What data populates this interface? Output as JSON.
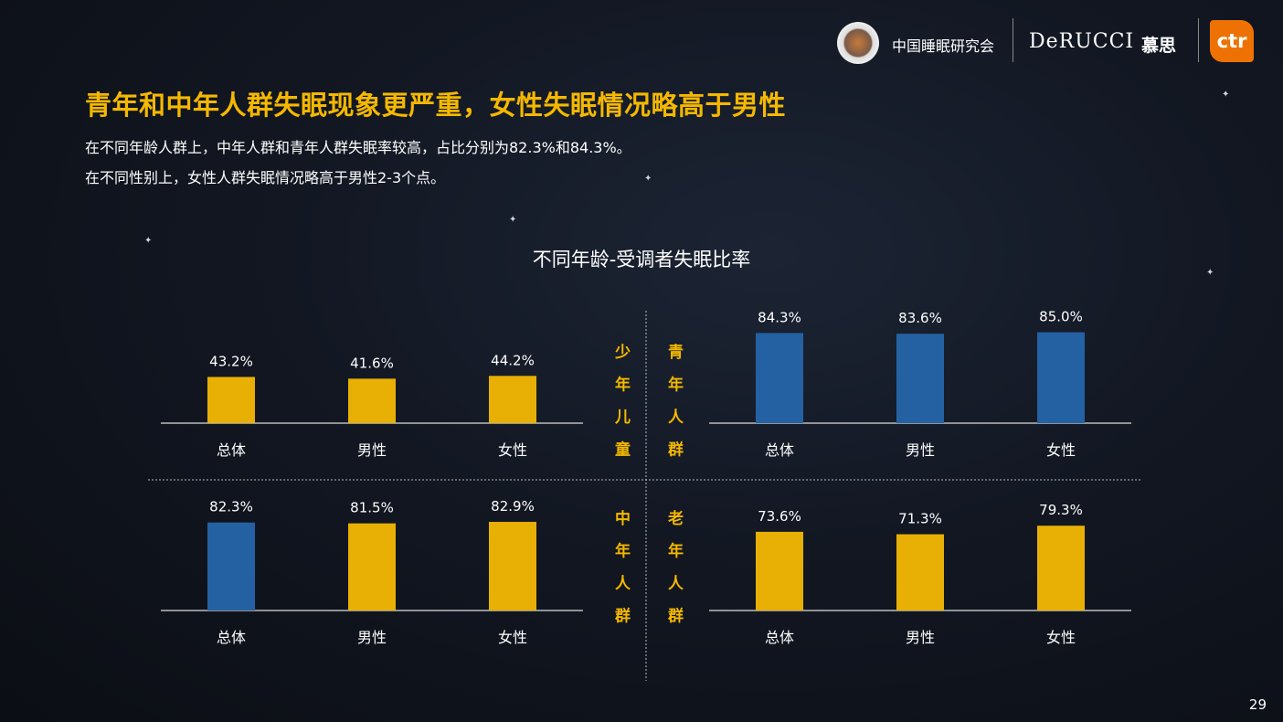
{
  "header": {
    "org1": "中国睡眠研究会",
    "org2": "DeRUCCI",
    "org2_cn": "慕思",
    "org3": "ctr"
  },
  "title": "青年和中年人群失眠现象更严重，女性失眠情况略高于男性",
  "subtitle_lines": [
    "在不同年龄人群上，中年人群和青年人群失眠率较高，占比分别为82.3%和84.3%。",
    "在不同性别上，女性人群失眠情况略高于男性2-3个点。"
  ],
  "page_number": "29",
  "colors": {
    "yellow": "#e8b004",
    "blue": "#2461a3",
    "accent": "#f5b800"
  },
  "chart_data": {
    "type": "bar",
    "title": "不同年龄-受调者失眠比率",
    "categories": [
      "总体",
      "男性",
      "女性"
    ],
    "ylim": [
      0,
      100
    ],
    "panels": [
      {
        "group": "少年儿童",
        "values": [
          43.2,
          41.6,
          44.2
        ],
        "labels": [
          "43.2%",
          "41.6%",
          "44.2%"
        ],
        "colors": [
          "yellow",
          "yellow",
          "yellow"
        ]
      },
      {
        "group": "青年人群",
        "values": [
          84.3,
          83.6,
          85.0
        ],
        "labels": [
          "84.3%",
          "83.6%",
          "85.0%"
        ],
        "colors": [
          "blue",
          "blue",
          "blue"
        ]
      },
      {
        "group": "中年人群",
        "values": [
          82.3,
          81.5,
          82.9
        ],
        "labels": [
          "82.3%",
          "81.5%",
          "82.9%"
        ],
        "colors": [
          "blue",
          "yellow",
          "yellow"
        ]
      },
      {
        "group": "老年人群",
        "values": [
          73.6,
          71.3,
          79.3
        ],
        "labels": [
          "73.6%",
          "71.3%",
          "79.3%"
        ],
        "colors": [
          "yellow",
          "yellow",
          "yellow"
        ]
      }
    ]
  }
}
